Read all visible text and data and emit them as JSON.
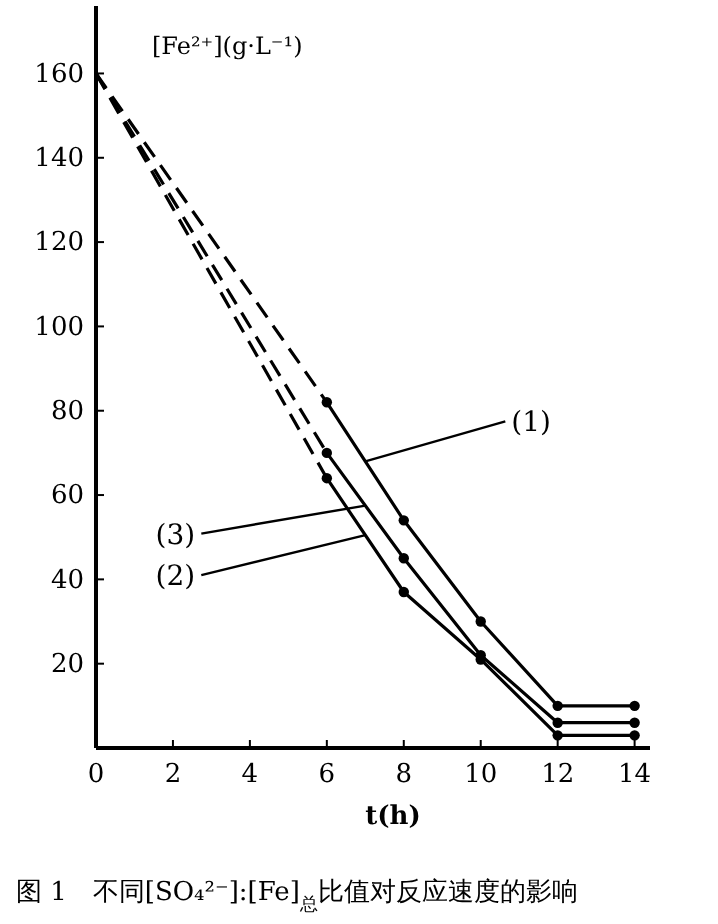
{
  "chart_data": {
    "type": "line",
    "xlabel": "t(h)",
    "ylabel": "[Fe²⁺](g·L⁻¹)",
    "annotations": [
      "图 1　不同[SO₄²⁻]:[Fe]$_{总}$比值对反应速度的影响"
    ],
    "xlim": [
      0,
      14.4
    ],
    "ylim": [
      0,
      176
    ],
    "xticks": [
      0,
      2,
      4,
      6,
      8,
      10,
      12,
      14
    ],
    "yticks": [
      20,
      40,
      60,
      80,
      100,
      120,
      140,
      160
    ],
    "grid": false,
    "legend": "right",
    "color": "#000000",
    "series": [
      {
        "line_style": "dashed",
        "x": [
          0,
          6
        ],
        "values": [
          160,
          82
        ]
      },
      {
        "line_style": "dashed",
        "x": [
          0,
          6
        ],
        "values": [
          160,
          70
        ]
      },
      {
        "line_style": "dashed",
        "x": [
          0,
          6
        ],
        "values": [
          160,
          64
        ]
      },
      {
        "name": "(1)",
        "line_style": "solid",
        "marker": "circle",
        "x": [
          6,
          8,
          10,
          12,
          14
        ],
        "values": [
          82,
          54,
          30,
          10,
          10
        ]
      },
      {
        "name": "(3)",
        "line_style": "solid",
        "marker": "circle",
        "x": [
          6,
          8,
          10,
          12,
          14
        ],
        "values": [
          70,
          45,
          22,
          6,
          6
        ]
      },
      {
        "name": "(2)",
        "line_style": "solid",
        "marker": "circle",
        "x": [
          6,
          8,
          10,
          12,
          14
        ],
        "values": [
          64,
          37,
          21,
          3,
          3
        ]
      }
    ]
  }
}
